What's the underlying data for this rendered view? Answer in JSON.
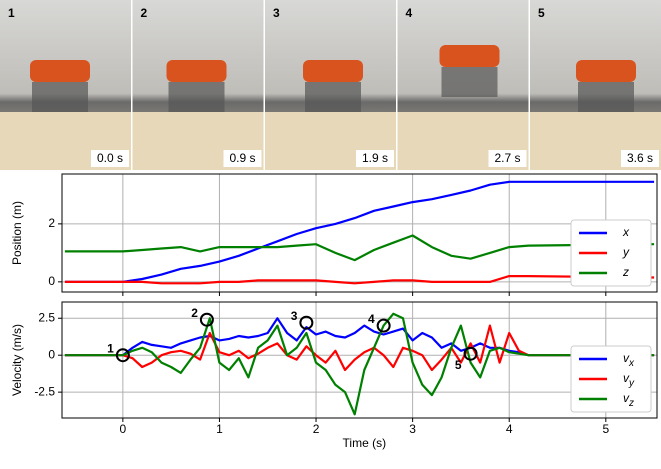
{
  "photos": [
    {
      "label": "1",
      "time": "0.0 s"
    },
    {
      "label": "2",
      "time": "0.9 s"
    },
    {
      "label": "3",
      "time": "1.9 s"
    },
    {
      "label": "4",
      "time": "2.7 s"
    },
    {
      "label": "5",
      "time": "3.6 s"
    }
  ],
  "chart_data": [
    {
      "type": "line",
      "ylabel": "Position (m)",
      "xlim": [
        -0.63,
        5.53
      ],
      "ylim": [
        -0.35,
        3.72
      ],
      "xticks": [
        0,
        1,
        2,
        3,
        4,
        5
      ],
      "yticks": [
        0,
        2
      ],
      "grid": true,
      "legend": "lower right",
      "x": [
        -0.6,
        0,
        0.2,
        0.4,
        0.6,
        0.8,
        1.0,
        1.2,
        1.4,
        1.6,
        1.8,
        2.0,
        2.2,
        2.4,
        2.6,
        2.8,
        3.0,
        3.2,
        3.4,
        3.6,
        3.8,
        4.0,
        4.2,
        5.5
      ],
      "series": [
        {
          "name": "x",
          "color": "#0000ff",
          "values": [
            0,
            0,
            0.1,
            0.25,
            0.45,
            0.55,
            0.7,
            0.9,
            1.15,
            1.4,
            1.65,
            1.85,
            2.0,
            2.2,
            2.45,
            2.6,
            2.75,
            2.85,
            3.0,
            3.15,
            3.35,
            3.45,
            3.45,
            3.45
          ]
        },
        {
          "name": "y",
          "color": "#ff0000",
          "values": [
            0,
            0,
            0,
            -0.05,
            -0.05,
            -0.05,
            0,
            0,
            0.05,
            0.05,
            0.05,
            0.05,
            0,
            -0.05,
            0,
            0.05,
            0.05,
            0,
            0,
            0,
            0,
            0.2,
            0.2,
            0.15
          ]
        },
        {
          "name": "z",
          "color": "#008000",
          "values": [
            1.05,
            1.05,
            1.1,
            1.15,
            1.2,
            1.05,
            1.2,
            1.2,
            1.2,
            1.2,
            1.25,
            1.3,
            1.0,
            0.75,
            1.1,
            1.35,
            1.6,
            1.2,
            0.9,
            0.8,
            1.0,
            1.2,
            1.25,
            1.3
          ]
        }
      ]
    },
    {
      "type": "line",
      "ylabel": "Velocity (m/s)",
      "xlabel": "Time (s)",
      "xlim": [
        -0.63,
        5.53
      ],
      "ylim": [
        -4.25,
        3.6
      ],
      "xticks": [
        0,
        1,
        2,
        3,
        4,
        5
      ],
      "yticks": [
        -2.5,
        0,
        2.5
      ],
      "grid": true,
      "legend": "lower right",
      "x": [
        -0.6,
        0,
        0.1,
        0.2,
        0.3,
        0.4,
        0.5,
        0.6,
        0.7,
        0.8,
        0.9,
        1.0,
        1.1,
        1.2,
        1.3,
        1.4,
        1.5,
        1.6,
        1.7,
        1.8,
        1.9,
        2.0,
        2.1,
        2.2,
        2.3,
        2.4,
        2.5,
        2.6,
        2.7,
        2.8,
        2.9,
        3.0,
        3.1,
        3.2,
        3.3,
        3.4,
        3.5,
        3.6,
        3.7,
        3.8,
        3.9,
        4.0,
        4.1,
        4.2,
        5.5
      ],
      "series": [
        {
          "name": "v",
          "subscript": "x",
          "color": "#0000ff",
          "values": [
            0,
            0,
            0.5,
            0.9,
            0.7,
            0.6,
            0.5,
            0.8,
            1.0,
            1.2,
            1.3,
            1.0,
            1.1,
            1.3,
            1.2,
            1.3,
            1.5,
            2.5,
            1.5,
            1.0,
            1.9,
            1.4,
            1.6,
            1.3,
            1.2,
            1.5,
            2.0,
            1.6,
            1.4,
            1.6,
            1.8,
            1.0,
            1.5,
            1.2,
            0.5,
            0.8,
            0.3,
            0.5,
            0.8,
            0.5,
            0.5,
            0.3,
            0.2,
            0.0,
            0
          ]
        },
        {
          "name": "v",
          "subscript": "y",
          "color": "#ff0000",
          "values": [
            0,
            0,
            -0.2,
            -0.8,
            -0.5,
            0.0,
            0.2,
            0.3,
            0.1,
            -0.3,
            1.5,
            0.2,
            0.0,
            0.3,
            -0.2,
            0.1,
            0.5,
            0.8,
            0.0,
            -0.3,
            0.6,
            0.0,
            -0.5,
            0.3,
            -1.0,
            -0.3,
            0.2,
            0.5,
            0.0,
            -0.8,
            0.5,
            0.3,
            0.0,
            -1.0,
            -0.3,
            0.5,
            -0.5,
            0.8,
            -0.5,
            2.0,
            -0.5,
            1.5,
            0.3,
            0.0,
            0
          ]
        },
        {
          "name": "v",
          "subscript": "z",
          "color": "#008000",
          "values": [
            0,
            0,
            0.3,
            0.5,
            0.2,
            -0.5,
            -0.8,
            -1.2,
            -0.3,
            0.5,
            2.5,
            -0.5,
            -1.0,
            -0.2,
            -1.5,
            0.5,
            1.0,
            2.0,
            0.0,
            0.5,
            1.5,
            -0.5,
            -1.0,
            -2.0,
            -2.5,
            -4.0,
            -1.0,
            0.5,
            2.0,
            2.8,
            2.5,
            -0.5,
            -2.0,
            -2.7,
            -1.5,
            0.5,
            2.0,
            -0.5,
            -1.5,
            0.3,
            0.5,
            0.2,
            0.1,
            0.0,
            0
          ]
        }
      ],
      "events": [
        {
          "label": "1",
          "x": 0,
          "y": 0
        },
        {
          "label": "2",
          "x": 0.87,
          "y": 2.4
        },
        {
          "label": "3",
          "x": 1.9,
          "y": 2.2
        },
        {
          "label": "4",
          "x": 2.7,
          "y": 2.0
        },
        {
          "label": "5",
          "x": 3.6,
          "y": 0.1
        }
      ]
    }
  ]
}
